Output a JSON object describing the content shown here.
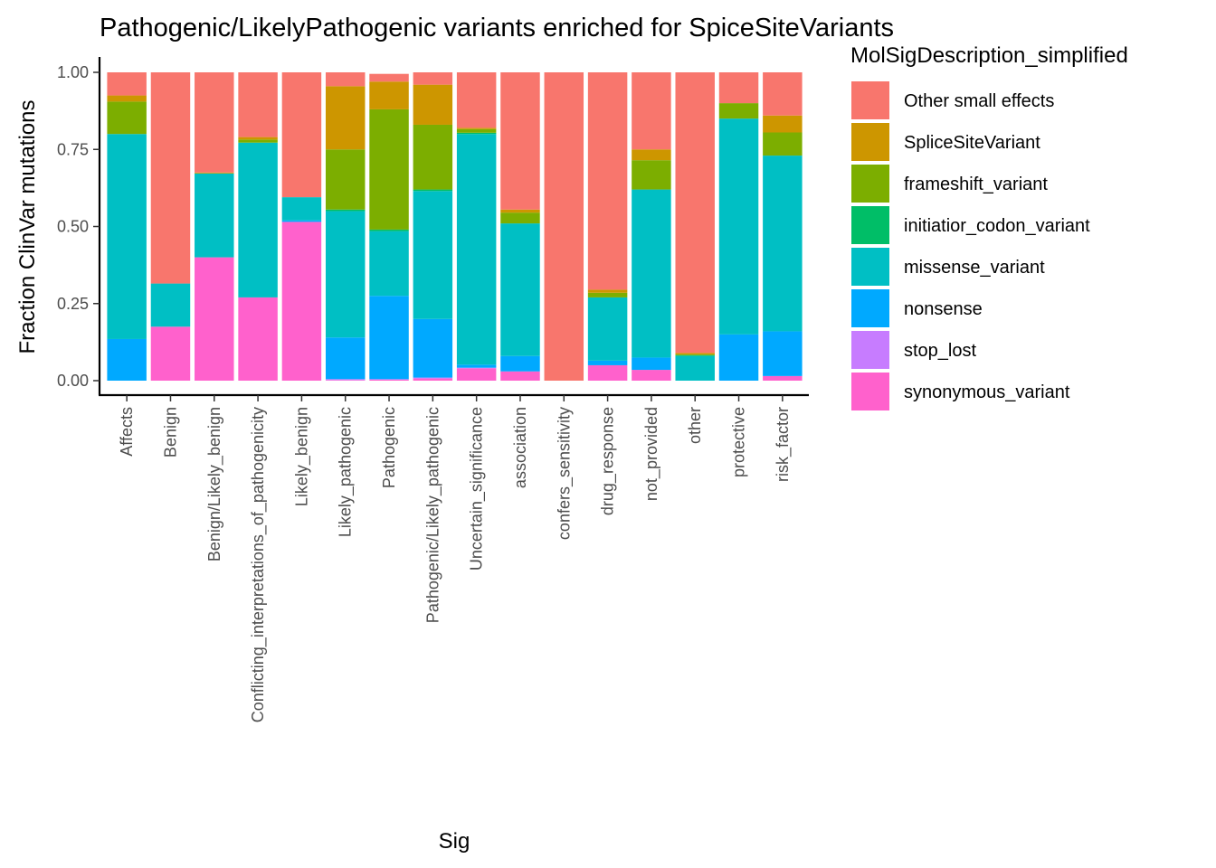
{
  "chart_data": {
    "type": "bar",
    "stacked": true,
    "title": "Pathogenic/LikelyPathogenic variants enriched for SpiceSiteVariants",
    "xlabel": "Sig",
    "ylabel": "Fraction ClinVar mutations",
    "ylim": [
      0,
      1
    ],
    "yticks": [
      "0.00",
      "0.25",
      "0.50",
      "0.75",
      "1.00"
    ],
    "categories": [
      "Affects",
      "Benign",
      "Benign/Likely_benign",
      "Conflicting_interpretations_of_pathogenicity",
      "Likely_benign",
      "Likely_pathogenic",
      "Pathogenic",
      "Pathogenic/Likely_pathogenic",
      "Uncertain_significance",
      "association",
      "confers_sensitivity",
      "drug_response",
      "not_provided",
      "other",
      "protective",
      "risk_factor"
    ],
    "legend_title": "MolSigDescription_simplified",
    "legend_position": "right",
    "series": [
      {
        "name": "Other small effects",
        "color": "#F8766D",
        "values": [
          0.075,
          0.685,
          0.325,
          0.21,
          0.405,
          0.045,
          0.025,
          0.04,
          0.18,
          0.445,
          1.0,
          0.705,
          0.25,
          0.91,
          0.1,
          0.14
        ]
      },
      {
        "name": "SpliceSiteVariant",
        "color": "#CD9600",
        "values": [
          0.02,
          0.0,
          0.003,
          0.008,
          0.0,
          0.205,
          0.09,
          0.13,
          0.004,
          0.01,
          0.0,
          0.01,
          0.035,
          0.005,
          0.0,
          0.055
        ]
      },
      {
        "name": "frameshift_variant",
        "color": "#7CAE00",
        "values": [
          0.105,
          0.0,
          0.0,
          0.01,
          0.0,
          0.195,
          0.39,
          0.21,
          0.012,
          0.035,
          0.0,
          0.015,
          0.095,
          0.002,
          0.05,
          0.075
        ]
      },
      {
        "name": "initiatior_codon_variant",
        "color": "#00BE67",
        "values": [
          0.0,
          0.0,
          0.0,
          0.0,
          0.0,
          0.005,
          0.005,
          0.005,
          0.004,
          0.0,
          0.0,
          0.0,
          0.0,
          0.003,
          0.0,
          0.0
        ]
      },
      {
        "name": "missense_variant",
        "color": "#00BFC4",
        "values": [
          0.665,
          0.14,
          0.272,
          0.502,
          0.075,
          0.41,
          0.21,
          0.415,
          0.748,
          0.43,
          0.0,
          0.205,
          0.545,
          0.08,
          0.7,
          0.57
        ]
      },
      {
        "name": "nonsense",
        "color": "#00A9FF",
        "values": [
          0.135,
          0.0,
          0.0,
          0.0,
          0.005,
          0.135,
          0.27,
          0.19,
          0.01,
          0.05,
          0.0,
          0.015,
          0.04,
          0.0,
          0.15,
          0.145
        ]
      },
      {
        "name": "stop_lost",
        "color": "#C77CFF",
        "values": [
          0.0,
          0.0,
          0.0,
          0.0,
          0.0,
          0.003,
          0.002,
          0.003,
          0.002,
          0.0,
          0.0,
          0.0,
          0.0,
          0.0,
          0.0,
          0.0
        ]
      },
      {
        "name": "synonymous_variant",
        "color": "#FF61CC",
        "values": [
          0.0,
          0.175,
          0.4,
          0.27,
          0.515,
          0.002,
          0.003,
          0.007,
          0.04,
          0.03,
          0.0,
          0.05,
          0.035,
          0.0,
          0.0,
          0.015
        ]
      }
    ]
  }
}
